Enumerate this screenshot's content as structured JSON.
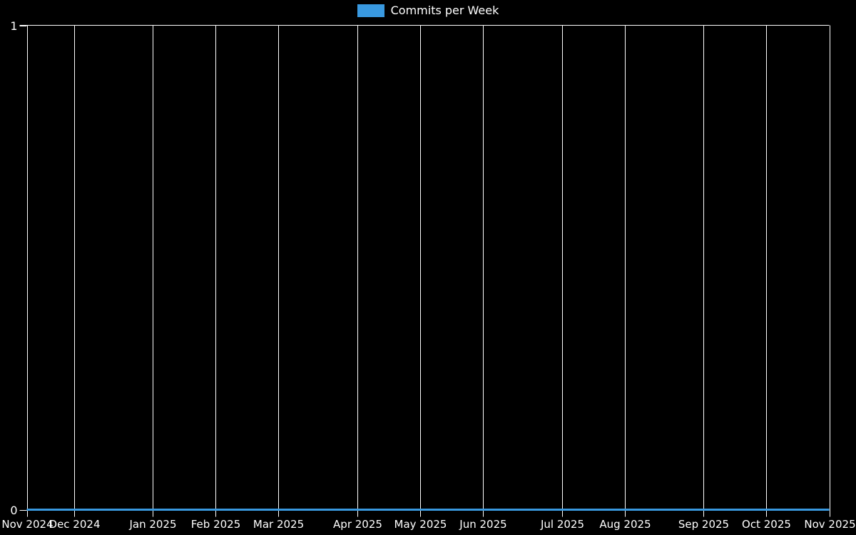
{
  "legend": {
    "items": [
      {
        "label": "Commits per Week",
        "color": "#3999e0"
      }
    ],
    "position": "top-center"
  },
  "chart_data": {
    "type": "line",
    "title": "",
    "xlabel": "",
    "ylabel": "",
    "background_color": "#000000",
    "foreground_color": "#ffffff",
    "grid": true,
    "legend_position": "top-center",
    "x_axis": {
      "unit": "week",
      "total_weeks": 51,
      "ticks": [
        {
          "label": "Nov 2024",
          "week": 0
        },
        {
          "label": "Dec 2024",
          "week": 3
        },
        {
          "label": "Jan 2025",
          "week": 8
        },
        {
          "label": "Feb 2025",
          "week": 12
        },
        {
          "label": "Mar 2025",
          "week": 16
        },
        {
          "label": "Apr 2025",
          "week": 21
        },
        {
          "label": "May 2025",
          "week": 25
        },
        {
          "label": "Jun 2025",
          "week": 29
        },
        {
          "label": "Jul 2025",
          "week": 34
        },
        {
          "label": "Aug 2025",
          "week": 38
        },
        {
          "label": "Sep 2025",
          "week": 43
        },
        {
          "label": "Oct 2025",
          "week": 47
        },
        {
          "label": "Nov 2025",
          "week": 51
        }
      ]
    },
    "y_axis": {
      "ylim": [
        0,
        1
      ],
      "ticks": [
        {
          "label": "0",
          "value": 0
        },
        {
          "label": "1",
          "value": 1
        }
      ]
    },
    "series": [
      {
        "name": "Commits per Week",
        "color": "#3999e0",
        "line_width": 3,
        "values": [
          0,
          0,
          0,
          0,
          0,
          0,
          0,
          0,
          0,
          0,
          0,
          0,
          0,
          0,
          0,
          0,
          0,
          0,
          0,
          0,
          0,
          0,
          0,
          0,
          0,
          0,
          0,
          0,
          0,
          0,
          0,
          0,
          0,
          0,
          0,
          0,
          0,
          0,
          0,
          0,
          0,
          0,
          0,
          0,
          0,
          0,
          0,
          0,
          0,
          0,
          0,
          0
        ]
      }
    ]
  }
}
